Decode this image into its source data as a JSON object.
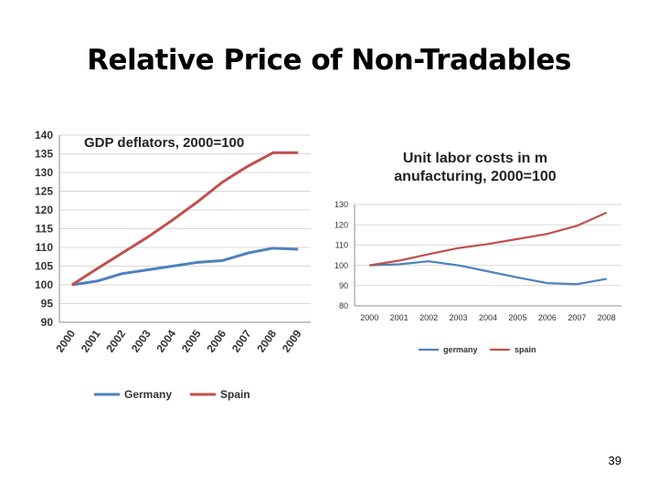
{
  "slide": {
    "title": "Relative Price of Non-Tradables",
    "page_number": "39"
  },
  "chart_data": [
    {
      "type": "line",
      "title": "GDP deflators, 2000=100",
      "x": [
        "2000",
        "2001",
        "2002",
        "2003",
        "2004",
        "2005",
        "2006",
        "2007",
        "2008",
        "2009"
      ],
      "ylim": [
        90,
        140
      ],
      "yticks": [
        90,
        95,
        100,
        105,
        110,
        115,
        120,
        125,
        130,
        135,
        140
      ],
      "grid": true,
      "legend_position": "bottom",
      "xtick_rotation": "rotated",
      "series": [
        {
          "name": "Germany",
          "color": "#4f81bd",
          "values": [
            100,
            101,
            103,
            104,
            105,
            106,
            106.5,
            108.5,
            109.8,
            109.5
          ]
        },
        {
          "name": "Spain",
          "color": "#c0504d",
          "values": [
            100,
            104.3,
            108.5,
            112.7,
            117.3,
            122.2,
            127.5,
            131.7,
            135.3,
            135.3
          ]
        }
      ]
    },
    {
      "type": "line",
      "title": "Unit labor costs in manufacturing, 2000=100",
      "x": [
        "2000",
        "2001",
        "2002",
        "2003",
        "2004",
        "2005",
        "2006",
        "2007",
        "2008"
      ],
      "ylim": [
        80,
        130
      ],
      "yticks": [
        80,
        90,
        100,
        110,
        120,
        130
      ],
      "grid": true,
      "legend_position": "bottom",
      "series": [
        {
          "name": "germany",
          "color": "#4f81bd",
          "values": [
            100,
            100.5,
            102,
            100,
            97,
            94,
            91.2,
            90.7,
            93.3
          ]
        },
        {
          "name": "spain",
          "color": "#c0504d",
          "values": [
            100,
            102.3,
            105.5,
            108.5,
            110.5,
            113,
            115.5,
            119.5,
            126
          ]
        }
      ]
    }
  ]
}
